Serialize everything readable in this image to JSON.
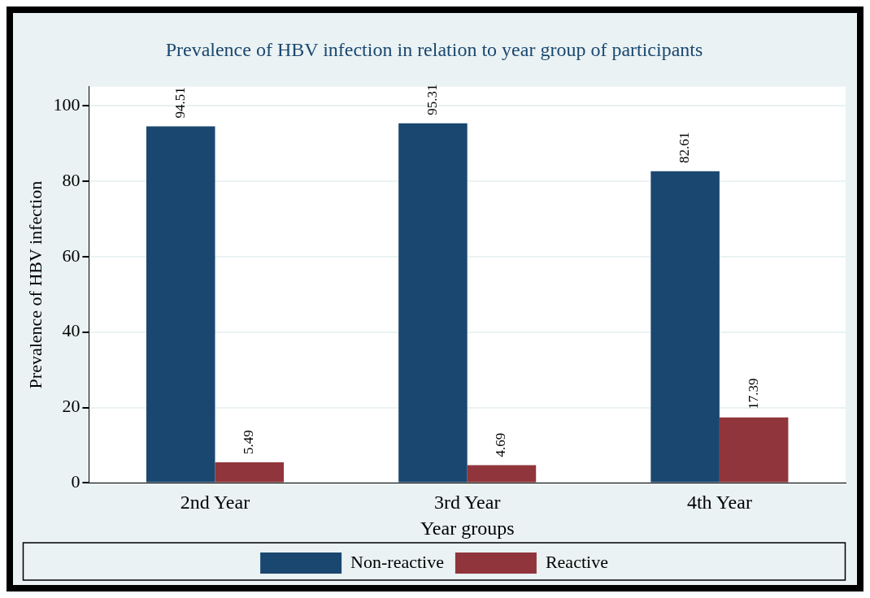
{
  "chart_data": {
    "type": "bar",
    "title": "Prevalence of HBV infection in relation to year group of participants",
    "xlabel": "Year groups",
    "ylabel": "Prevalence of HBV infection",
    "categories": [
      "2nd Year",
      "3rd Year",
      "4th Year"
    ],
    "series": [
      {
        "name": "Non-reactive",
        "color": "#1a476f",
        "values": [
          94.51,
          95.31,
          82.61
        ]
      },
      {
        "name": "Reactive",
        "color": "#90353b",
        "values": [
          5.49,
          4.69,
          17.39
        ]
      }
    ],
    "ylim": [
      0,
      105
    ],
    "yticks": [
      0,
      20,
      40,
      60,
      80,
      100
    ],
    "grid": "y",
    "legend": "bottom",
    "data_labels": true
  }
}
